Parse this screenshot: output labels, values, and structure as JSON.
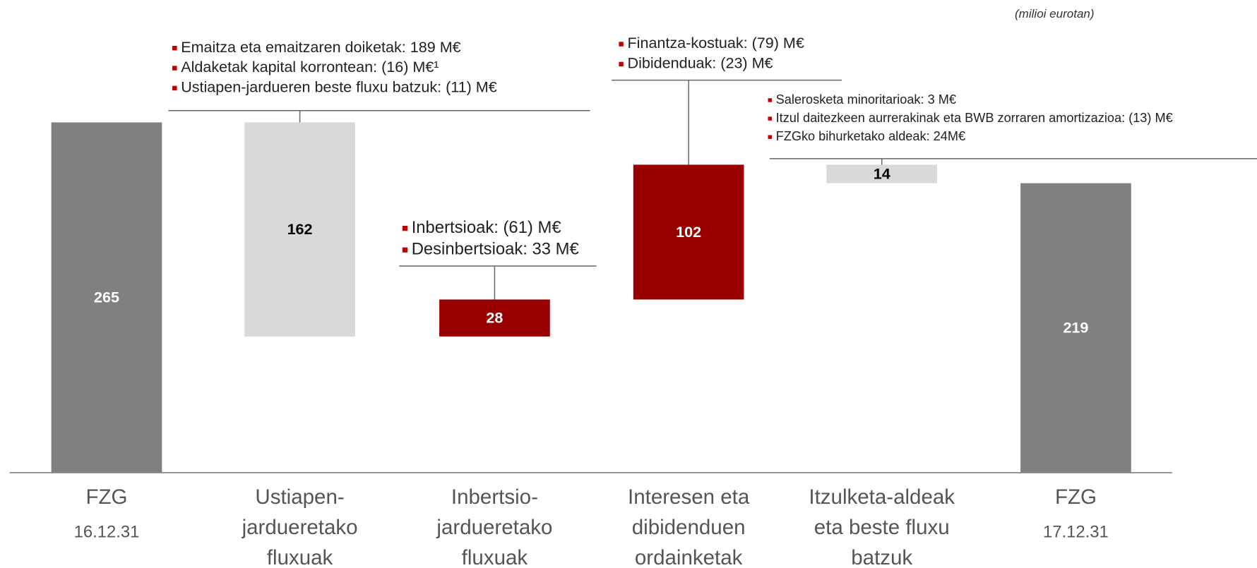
{
  "chart_data": {
    "type": "waterfall",
    "subtitle": "(milioi eurotan)",
    "categories": [
      [
        "FZG"
      ],
      [
        "Ustiapen-",
        "jardueretako",
        "fluxuak"
      ],
      [
        "Inbertsio-",
        "jardueretako",
        "fluxuak"
      ],
      [
        "Interesen eta",
        "dibidenduen",
        "ordainketak"
      ],
      [
        "Itzulketa-aldeak",
        "eta beste fluxu",
        "batzuk"
      ],
      [
        "FZG"
      ]
    ],
    "dates": [
      "16.12.31",
      null,
      null,
      null,
      null,
      "17.12.31"
    ],
    "values": [
      265,
      162,
      28,
      102,
      14,
      219
    ],
    "measures": [
      "total",
      "decrease",
      "increase",
      "increase",
      "decrease",
      "total"
    ],
    "colors": {
      "total": "#808080",
      "decrease": "#d9d9d9",
      "increase": "#990000"
    },
    "annotations": [
      null,
      [
        "Emaitza eta emaitzaren doiketak: 189 M€",
        "Aldaketak kapital korrontean: (16) M€¹",
        "Ustiapen-jardueren beste fluxu batzuk: (11) M€"
      ],
      [
        "Inbertsioak: (61) M€",
        "Desinbertsioak: 33 M€"
      ],
      [
        "Finantza-kostuak: (79) M€",
        "Dibidenduak: (23) M€"
      ],
      [
        "Salerosketa minoritarioak: 3 M€",
        "Itzul daitezkeen aurrerakinak eta BWB zorraren amortizazioa: (13) M€",
        "FZGko bihurketako aldeak: 24M€"
      ],
      null
    ]
  }
}
